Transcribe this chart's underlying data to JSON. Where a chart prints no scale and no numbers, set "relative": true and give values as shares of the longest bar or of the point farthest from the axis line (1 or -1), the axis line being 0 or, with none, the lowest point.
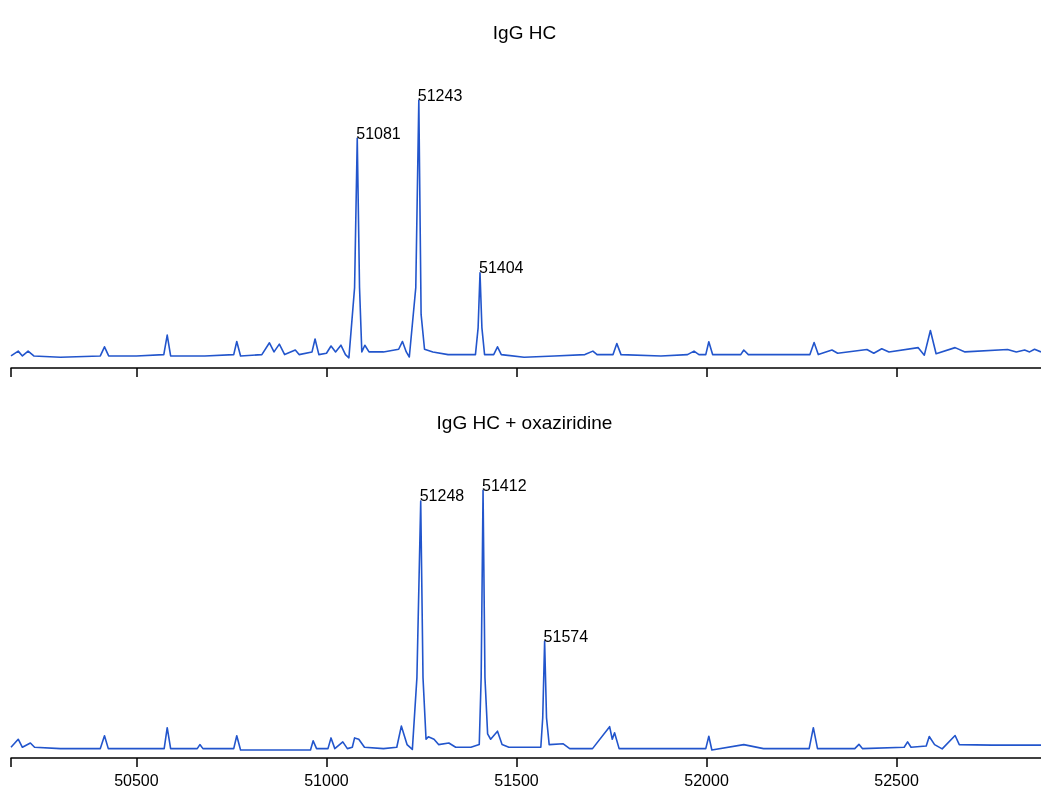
{
  "chart_data": [
    {
      "type": "line",
      "title": "IgG HC",
      "relative": true,
      "marker": "none",
      "grid": false,
      "tick_labels": false,
      "xlim": [
        50170,
        52880
      ],
      "xticks": [
        {
          "value": 50170,
          "label": null
        },
        50500,
        51000,
        51500,
        52000,
        52500
      ],
      "annotations": [
        {
          "text": "51081",
          "x": 51081,
          "y": 0.857
        },
        {
          "text": "51243",
          "x": 51243,
          "y": 1
        },
        {
          "text": "51404",
          "x": 51404,
          "y": 0.355
        }
      ],
      "series": [
        {
          "color": "#2255cc",
          "x": [
            50170,
            50189,
            50200,
            50215,
            50230,
            50300,
            50405,
            50416,
            50427,
            50500,
            50572,
            50581,
            50590,
            50680,
            50756,
            50764,
            50774,
            50830,
            50850,
            50862,
            50876,
            50890,
            50918,
            50928,
            50962,
            50970,
            50980,
            51000,
            51012,
            51024,
            51038,
            51050,
            51059,
            51074,
            51081,
            51087,
            51093,
            51101,
            51112,
            51150,
            51190,
            51200,
            51210,
            51218,
            51235,
            51243,
            51249,
            51258,
            51280,
            51320,
            51370,
            51392,
            51399,
            51404,
            51409,
            51416,
            51440,
            51450,
            51460,
            51520,
            51600,
            51680,
            51701,
            51712,
            51754,
            51764,
            51775,
            51880,
            51950,
            51967,
            51980,
            51998,
            52006,
            52016,
            52090,
            52098,
            52110,
            52272,
            52283,
            52294,
            52330,
            52345,
            52422,
            52440,
            52461,
            52480,
            52557,
            52573,
            52589,
            52604,
            52654,
            52680,
            52792,
            52815,
            52837,
            52850,
            52863,
            52880
          ],
          "values": [
            0.045,
            0.063,
            0.045,
            0.063,
            0.045,
            0.04,
            0.045,
            0.079,
            0.045,
            0.045,
            0.05,
            0.123,
            0.045,
            0.045,
            0.05,
            0.099,
            0.045,
            0.05,
            0.094,
            0.06,
            0.089,
            0.05,
            0.067,
            0.05,
            0.06,
            0.108,
            0.05,
            0.055,
            0.082,
            0.06,
            0.085,
            0.05,
            0.038,
            0.3,
            0.857,
            0.3,
            0.06,
            0.085,
            0.06,
            0.06,
            0.07,
            0.099,
            0.06,
            0.041,
            0.3,
            1,
            0.2,
            0.07,
            0.06,
            0.05,
            0.05,
            0.05,
            0.15,
            0.355,
            0.15,
            0.05,
            0.05,
            0.079,
            0.05,
            0.04,
            0.045,
            0.05,
            0.063,
            0.05,
            0.05,
            0.091,
            0.05,
            0.045,
            0.05,
            0.063,
            0.05,
            0.05,
            0.098,
            0.05,
            0.05,
            0.067,
            0.05,
            0.05,
            0.095,
            0.05,
            0.067,
            0.055,
            0.069,
            0.055,
            0.072,
            0.06,
            0.076,
            0.048,
            0.14,
            0.053,
            0.076,
            0.06,
            0.069,
            0.06,
            0.067,
            0.06,
            0.07,
            0.06
          ]
        }
      ]
    },
    {
      "type": "line",
      "title": "IgG HC + oxaziridine",
      "relative": true,
      "marker": "none",
      "grid": false,
      "xlim": [
        50170,
        52880
      ],
      "xticks": [
        {
          "value": 50170,
          "label": null
        },
        50500,
        51000,
        51500,
        52000,
        52500
      ],
      "annotations": [
        {
          "text": "51248",
          "x": 51248,
          "y": 0.959
        },
        {
          "text": "51412",
          "x": 51412,
          "y": 1
        },
        {
          "text": "51574",
          "x": 51574,
          "y": 0.436
        }
      ],
      "series": [
        {
          "color": "#2255cc",
          "x": [
            50170,
            50189,
            50200,
            50221,
            50232,
            50300,
            50405,
            50416,
            50426,
            50500,
            50573,
            50581,
            50590,
            50660,
            50667,
            50675,
            50756,
            50764,
            50774,
            50900,
            50958,
            50965,
            50974,
            51004,
            51012,
            51022,
            51043,
            51055,
            51068,
            51074,
            51085,
            51100,
            51150,
            51185,
            51197,
            51212,
            51226,
            51238,
            51248,
            51254,
            51262,
            51268,
            51283,
            51295,
            51322,
            51340,
            51380,
            51402,
            51407,
            51412,
            51417,
            51424,
            51432,
            51450,
            51462,
            51480,
            51540,
            51564,
            51569,
            51574,
            51579,
            51586,
            51623,
            51640,
            51700,
            51745,
            51752,
            51758,
            51770,
            51900,
            51998,
            52006,
            52014,
            52098,
            52150,
            52270,
            52281,
            52292,
            52390,
            52401,
            52410,
            52520,
            52529,
            52538,
            52578,
            52586,
            52600,
            52620,
            52654,
            52665,
            52750,
            52880
          ],
          "values": [
            0.04,
            0.07,
            0.04,
            0.056,
            0.04,
            0.035,
            0.035,
            0.083,
            0.035,
            0.035,
            0.035,
            0.113,
            0.035,
            0.035,
            0.05,
            0.035,
            0.035,
            0.083,
            0.03,
            0.03,
            0.03,
            0.064,
            0.035,
            0.035,
            0.075,
            0.035,
            0.06,
            0.035,
            0.04,
            0.075,
            0.07,
            0.04,
            0.035,
            0.04,
            0.119,
            0.05,
            0.032,
            0.3,
            0.959,
            0.3,
            0.07,
            0.079,
            0.07,
            0.05,
            0.056,
            0.04,
            0.04,
            0.05,
            0.3,
            1,
            0.3,
            0.09,
            0.07,
            0.1,
            0.05,
            0.04,
            0.04,
            0.04,
            0.15,
            0.436,
            0.15,
            0.05,
            0.053,
            0.035,
            0.035,
            0.117,
            0.07,
            0.094,
            0.035,
            0.035,
            0.035,
            0.081,
            0.03,
            0.05,
            0.035,
            0.035,
            0.113,
            0.035,
            0.035,
            0.051,
            0.035,
            0.04,
            0.06,
            0.04,
            0.045,
            0.08,
            0.05,
            0.034,
            0.084,
            0.05,
            0.048,
            0.048
          ]
        }
      ]
    }
  ]
}
